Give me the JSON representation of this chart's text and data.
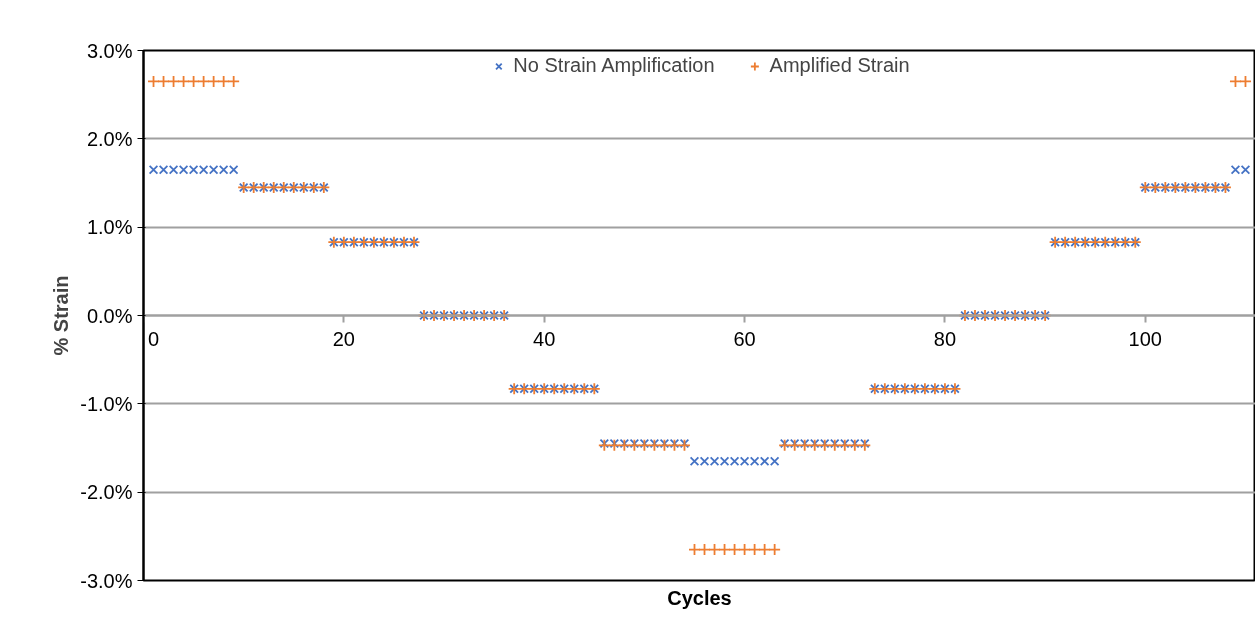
{
  "chart_data": {
    "type": "scatter",
    "xlabel": "Cycles",
    "ylabel": "% Strain",
    "x": [
      1,
      2,
      3,
      4,
      5,
      6,
      7,
      8,
      9,
      10,
      11,
      12,
      13,
      14,
      15,
      16,
      17,
      18,
      19,
      20,
      21,
      22,
      23,
      24,
      25,
      26,
      27,
      28,
      29,
      30,
      31,
      32,
      33,
      34,
      35,
      36,
      37,
      38,
      39,
      40,
      41,
      42,
      43,
      44,
      45,
      46,
      47,
      48,
      49,
      50,
      51,
      52,
      53,
      54,
      55,
      56,
      57,
      58,
      59,
      60,
      61,
      62,
      63,
      64,
      65,
      66,
      67,
      68,
      69,
      70,
      71,
      72,
      73,
      74,
      75,
      76,
      77,
      78,
      79,
      80,
      81,
      82,
      83,
      84,
      85,
      86,
      87,
      88,
      89,
      90,
      91,
      92,
      93,
      94,
      95,
      96,
      97,
      98,
      99,
      100,
      101,
      102,
      103,
      104,
      105,
      106,
      107,
      108,
      109,
      110
    ],
    "series": [
      {
        "name": "No Strain Amplification",
        "color": "#4472c4",
        "marker": "x",
        "values": [
          1.65,
          1.65,
          1.65,
          1.65,
          1.65,
          1.65,
          1.65,
          1.65,
          1.65,
          1.45,
          1.45,
          1.45,
          1.45,
          1.45,
          1.45,
          1.45,
          1.45,
          1.45,
          0.83,
          0.83,
          0.83,
          0.83,
          0.83,
          0.83,
          0.83,
          0.83,
          0.83,
          0,
          0,
          0,
          0,
          0,
          0,
          0,
          0,
          0,
          -0.83,
          -0.83,
          -0.83,
          -0.83,
          -0.83,
          -0.83,
          -0.83,
          -0.83,
          -0.83,
          -1.45,
          -1.45,
          -1.45,
          -1.45,
          -1.45,
          -1.45,
          -1.45,
          -1.45,
          -1.45,
          -1.65,
          -1.65,
          -1.65,
          -1.65,
          -1.65,
          -1.65,
          -1.65,
          -1.65,
          -1.65,
          -1.45,
          -1.45,
          -1.45,
          -1.45,
          -1.45,
          -1.45,
          -1.45,
          -1.45,
          -1.45,
          -0.83,
          -0.83,
          -0.83,
          -0.83,
          -0.83,
          -0.83,
          -0.83,
          -0.83,
          -0.83,
          0,
          0,
          0,
          0,
          0,
          0,
          0,
          0,
          0,
          0.83,
          0.83,
          0.83,
          0.83,
          0.83,
          0.83,
          0.83,
          0.83,
          0.83,
          1.45,
          1.45,
          1.45,
          1.45,
          1.45,
          1.45,
          1.45,
          1.45,
          1.45,
          1.65,
          1.65
        ]
      },
      {
        "name": "Amplified Strain",
        "color": "#ed7d31",
        "marker": "cross",
        "values": [
          2.65,
          2.65,
          2.65,
          2.65,
          2.65,
          2.65,
          2.65,
          2.65,
          2.65,
          1.45,
          1.45,
          1.45,
          1.45,
          1.45,
          1.45,
          1.45,
          1.45,
          1.45,
          0.83,
          0.83,
          0.83,
          0.83,
          0.83,
          0.83,
          0.83,
          0.83,
          0.83,
          0,
          0,
          0,
          0,
          0,
          0,
          0,
          0,
          0,
          -0.83,
          -0.83,
          -0.83,
          -0.83,
          -0.83,
          -0.83,
          -0.83,
          -0.83,
          -0.83,
          -1.47,
          -1.47,
          -1.47,
          -1.47,
          -1.47,
          -1.47,
          -1.47,
          -1.47,
          -1.47,
          -2.65,
          -2.65,
          -2.65,
          -2.65,
          -2.65,
          -2.65,
          -2.65,
          -2.65,
          -2.65,
          -1.47,
          -1.47,
          -1.47,
          -1.47,
          -1.47,
          -1.47,
          -1.47,
          -1.47,
          -1.47,
          -0.83,
          -0.83,
          -0.83,
          -0.83,
          -0.83,
          -0.83,
          -0.83,
          -0.83,
          -0.83,
          0,
          0,
          0,
          0,
          0,
          0,
          0,
          0,
          0,
          0.83,
          0.83,
          0.83,
          0.83,
          0.83,
          0.83,
          0.83,
          0.83,
          0.83,
          1.45,
          1.45,
          1.45,
          1.45,
          1.45,
          1.45,
          1.45,
          1.45,
          1.45,
          2.65,
          2.65
        ]
      }
    ],
    "xlim": [
      0,
      111
    ],
    "xticks": [
      0,
      20,
      40,
      60,
      80,
      100
    ],
    "ylim": [
      -3,
      3
    ],
    "yticks": [
      {
        "value": -3,
        "label": "-3.0%"
      },
      {
        "value": -2,
        "label": "-2.0%"
      },
      {
        "value": -1,
        "label": "-1.0%"
      },
      {
        "value": 0,
        "label": "0.0%"
      },
      {
        "value": 1,
        "label": "1.0%"
      },
      {
        "value": 2,
        "label": "2.0%"
      },
      {
        "value": 3,
        "label": "3.0%"
      }
    ],
    "grid": "y",
    "legend": "top"
  }
}
